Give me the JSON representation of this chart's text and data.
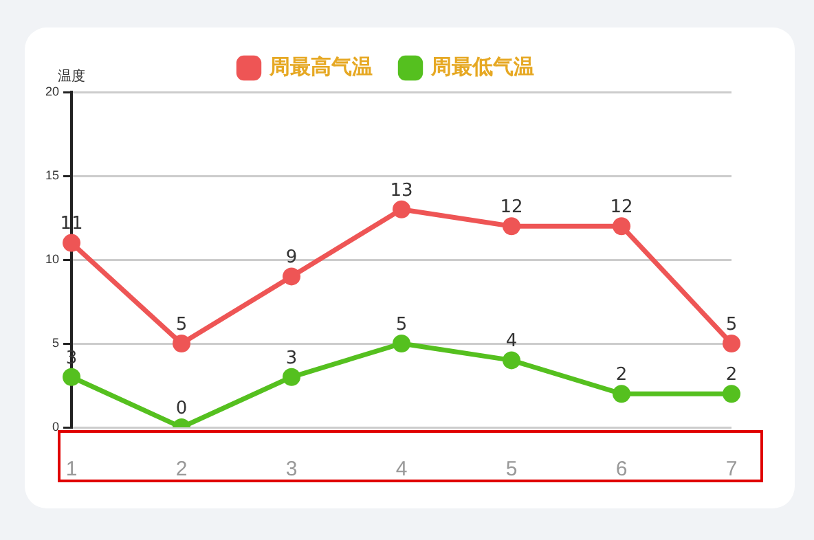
{
  "chart_data": {
    "type": "line",
    "ylabel": "温度",
    "categories": [
      "1",
      "2",
      "3",
      "4",
      "5",
      "6",
      "7"
    ],
    "series": [
      {
        "name": "周最高气温",
        "color": "#ee5555",
        "values": [
          11,
          5,
          9,
          13,
          12,
          12,
          5
        ]
      },
      {
        "name": "周最低气温",
        "color": "#55c01f",
        "values": [
          3,
          0,
          3,
          5,
          4,
          2,
          2
        ]
      }
    ],
    "ylim": [
      0,
      20
    ],
    "yticks": [
      0,
      5,
      10,
      15,
      20
    ],
    "grid": "y",
    "legend": "top",
    "marker": "circle",
    "line_style": "solid",
    "data_labels": true
  }
}
